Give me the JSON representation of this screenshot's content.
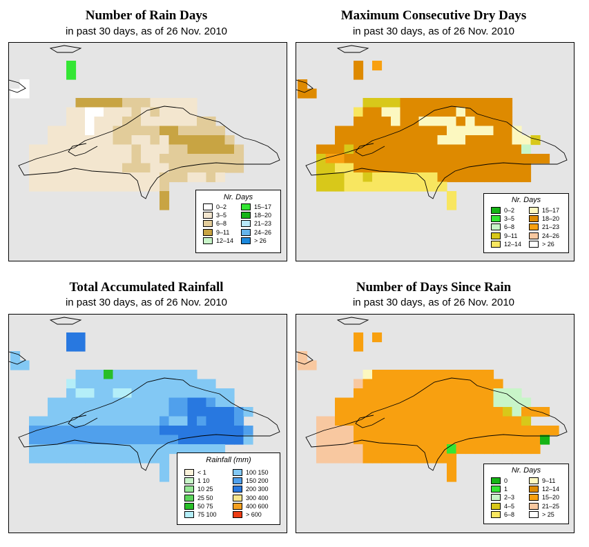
{
  "chart_data": [
    {
      "id": "rain_days",
      "type": "heatmap",
      "title": "Number of Rain Days",
      "subtitle": "in past 30 days, as of  26 Nov. 2010",
      "legend": {
        "title": "Nr. Days",
        "items": [
          {
            "label": "0–2",
            "color": "#ffffff"
          },
          {
            "label": "3–5",
            "color": "#f3e6cf"
          },
          {
            "label": "6–8",
            "color": "#e2cc9a"
          },
          {
            "label": "9–11",
            "color": "#c8a443"
          },
          {
            "label": "12–14",
            "color": "#c8f5c8"
          },
          {
            "label": "15–17",
            "color": "#34e634"
          },
          {
            "label": "18–20",
            "color": "#16b416"
          },
          {
            "label": "21–23",
            "color": "#b8e8f8"
          },
          {
            "label": "24–26",
            "color": "#64b4ec"
          },
          {
            "label": "> 26",
            "color": "#1c88dc"
          }
        ]
      },
      "grid_rows": [
        "......5.......",
        "......5.......",
        ".0.........................",
        "00.........................",
        ".......3333322211111........",
        "......11001112121111........",
        "......1101112211111122......",
        "....1111011222223322222.....",
        "....11111112211213333332....",
        "..11111111111211122333332...",
        "..11111111111211222222222...",
        "..11111111112221122222222...",
        "..111111111111112221121.....",
        "..111111111111112...........",
        "................3...........",
        "................3..........."
      ]
    },
    {
      "id": "dry_days",
      "type": "heatmap",
      "title": "Maximum Consecutive Dry Days",
      "subtitle": "in past 30 days, as of  26 Nov. 2010",
      "legend": {
        "title": "Nr. Days",
        "items": [
          {
            "label": "0–2",
            "color": "#16b416"
          },
          {
            "label": "3–5",
            "color": "#34e634"
          },
          {
            "label": "6–8",
            "color": "#c8f5c8"
          },
          {
            "label": "9–11",
            "color": "#d8c81a"
          },
          {
            "label": "12–14",
            "color": "#f8e660"
          },
          {
            "label": "15–17",
            "color": "#fcf8c0"
          },
          {
            "label": "18–20",
            "color": "#de8a00"
          },
          {
            "label": "21–23",
            "color": "#f8a010"
          },
          {
            "label": "24–26",
            "color": "#f8c8a0"
          },
          {
            "label": "> 26",
            "color": "#ffffff"
          }
        ]
      },
      "grid_rows": [
        "......6.7.....",
        "......6.......",
        "6.........................",
        "66.........................",
        ".......3333666666666666....",
        "......46655666666566666....",
        "......66665665555656666....",
        "....66666666666655555665...",
        "....6666666666655566666553.",
        "..66636666666666666666662..",
        "..3776666666666666666666666",
        "..33446666666666666666666..",
        "..33344344444446666666666..",
        "..33344444444444...........",
        "................4..........",
        "................4.........."
      ]
    },
    {
      "id": "rainfall",
      "type": "heatmap",
      "title": "Total Accumulated Rainfall",
      "subtitle": "in past 30 days, as of  26 Nov. 2010",
      "legend": {
        "title": "Rainfall (mm)",
        "items": [
          {
            "label": "< 1",
            "color": "#fbf2da"
          },
          {
            "label": "1   10",
            "color": "#c8f5c8"
          },
          {
            "label": "10   25",
            "color": "#96e896"
          },
          {
            "label": "25   50",
            "color": "#5cd45c"
          },
          {
            "label": "50   75",
            "color": "#28be28"
          },
          {
            "label": "75   100",
            "color": "#b4eef8"
          },
          {
            "label": "100   150",
            "color": "#82c8f4"
          },
          {
            "label": "150   200",
            "color": "#50a0ec"
          },
          {
            "label": "200   300",
            "color": "#2878e0"
          },
          {
            "label": "300   400",
            "color": "#f8e68c"
          },
          {
            "label": "400   600",
            "color": "#f4a020"
          },
          {
            "label": "> 600",
            "color": "#ec3c14"
          }
        ]
      },
      "grid_rows": [
        "......88.....",
        "......88.....",
        "6.........................",
        "66.........................",
        ".......6664666666666........",
        "......5666666666666666......",
        "......655665566666666666....",
        "....66666666666667788766....",
        "....6666666666666778888876..",
        "..66666666666666766878887...",
        "..777777777777778888888887..",
        "..777777777777777788888886..",
        "..666666666666666666666.....",
        "..666666666666666...........",
        "................6...........",
        "................6..........."
      ]
    },
    {
      "id": "since_rain",
      "type": "heatmap",
      "title": "Number of Days Since Rain",
      "subtitle": "in past 30 days, as of  26 Nov. 2010",
      "legend": {
        "title": "Nr. Days",
        "items": [
          {
            "label": "0",
            "color": "#16b416"
          },
          {
            "label": "1",
            "color": "#34e634"
          },
          {
            "label": "2–3",
            "color": "#c8f5c8"
          },
          {
            "label": "4–5",
            "color": "#d8c81a"
          },
          {
            "label": "6–8",
            "color": "#f8e660"
          },
          {
            "label": "9–11",
            "color": "#fcf8c0"
          },
          {
            "label": "12–14",
            "color": "#de8a00"
          },
          {
            "label": "15–20",
            "color": "#f8a010"
          },
          {
            "label": "21–25",
            "color": "#f8c8a0"
          },
          {
            "label": "> 25",
            "color": "#ffffff"
          }
        ]
      },
      "grid_rows": [
        "......7.7.....",
        "......7.......",
        "8.........................",
        "88.........................",
        ".......57777777777777......",
        "......8777777777777777......",
        "......777777777777777222....",
        "....777777777777777772222...",
        "....77777777777777777732777.",
        "..88777777777777777777773...",
        "..88887777777777777777777777",
        "..8888777777777777777777770.",
        "..888887777777771777777777..",
        "..888887777777777...........",
        "................7...........",
        "................7..........."
      ]
    }
  ]
}
